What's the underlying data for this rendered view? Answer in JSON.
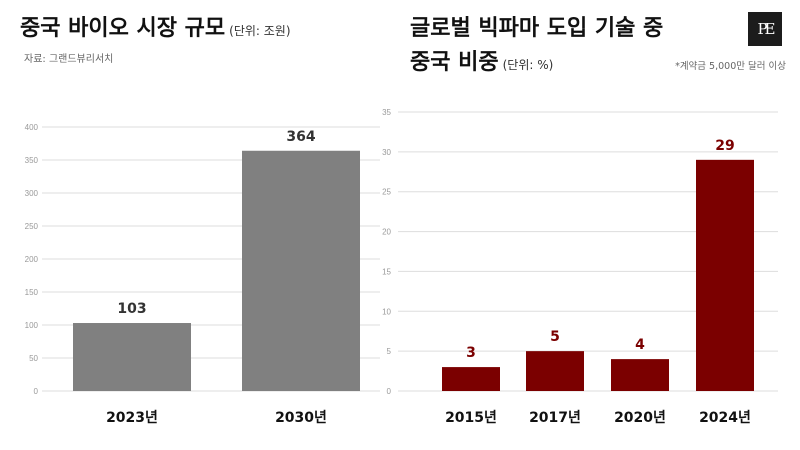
{
  "left": {
    "title": "중국 바이오 시장 규모",
    "unit": "(단위: 조원)",
    "source": "자료: 그랜드뷰리서치"
  },
  "right": {
    "title_line1": "글로벌 빅파마 도입 기술 중",
    "title_line2": "중국 비중",
    "unit": "(단위: %)",
    "note": "*계약금 5,000만 달러 이상"
  },
  "logo": {
    "text": "PE",
    "icon": "pe-logo"
  },
  "colors": {
    "left_bar": "#808080",
    "right_bar": "#7b0000",
    "right_label": "#7b0000",
    "grid": "#dddddd"
  },
  "chart_data": [
    {
      "type": "bar",
      "categories": [
        "2023년",
        "2030년"
      ],
      "values": [
        103,
        364
      ],
      "data_labels": [
        "103",
        "364"
      ],
      "ylim": [
        0,
        400
      ],
      "yticks": [
        0,
        50,
        100,
        150,
        200,
        250,
        300,
        350,
        400
      ],
      "grid": true
    },
    {
      "type": "bar",
      "categories": [
        "2015년",
        "2017년",
        "2020년",
        "2024년"
      ],
      "values": [
        3,
        5,
        4,
        29
      ],
      "data_labels": [
        "3",
        "5",
        "4",
        "29"
      ],
      "ylim": [
        0,
        35
      ],
      "yticks": [
        0,
        5,
        10,
        15,
        20,
        25,
        30,
        35
      ],
      "grid": true
    }
  ]
}
